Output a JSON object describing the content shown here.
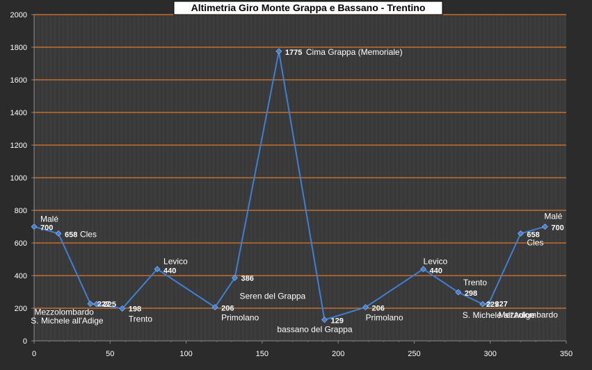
{
  "chart_data": {
    "type": "scatter",
    "title": "Altimetria Giro Monte Grappa e Bassano - Trentino",
    "xlim": [
      0,
      350
    ],
    "ylim": [
      0,
      2000
    ],
    "x_ticks": [
      0,
      50,
      100,
      150,
      200,
      250,
      300,
      350
    ],
    "y_ticks": [
      0,
      200,
      400,
      600,
      800,
      1000,
      1200,
      1400,
      1600,
      1800,
      2000
    ],
    "grid": true,
    "legend": "none",
    "colors": {
      "frame_background": "#2b2b2b",
      "plot_background": "#3c3c3c",
      "gridline": "#e07a2a",
      "series": "#3f7fd6",
      "text": "#ffffff",
      "title_box": "#ffffff",
      "title_text": "#000000"
    },
    "series": [
      {
        "points": [
          {
            "x": 0,
            "y": 700,
            "value_label": "700",
            "place": "Malé"
          },
          {
            "x": 16,
            "y": 658,
            "value_label": "658",
            "place": "Cles"
          },
          {
            "x": 37,
            "y": 227,
            "value_label": "227",
            "place": "Mezzolombardo"
          },
          {
            "x": 41,
            "y": 225,
            "value_label": "225",
            "place": "S. Michele all'Adige"
          },
          {
            "x": 58,
            "y": 198,
            "value_label": "198",
            "place": "Trento"
          },
          {
            "x": 81,
            "y": 440,
            "value_label": "440",
            "place": "Levico"
          },
          {
            "x": 119,
            "y": 206,
            "value_label": "206",
            "place": "Primolano"
          },
          {
            "x": 132,
            "y": 386,
            "value_label": "386",
            "place": "Seren del Grappa"
          },
          {
            "x": 161,
            "y": 1775,
            "value_label": "1775",
            "place": "Cima Grappa (Memoriale)"
          },
          {
            "x": 191,
            "y": 129,
            "value_label": "129",
            "place": "bassano del Grappa"
          },
          {
            "x": 218,
            "y": 206,
            "value_label": "206",
            "place": "Primolano"
          },
          {
            "x": 256,
            "y": 440,
            "value_label": "440",
            "place": "Levico"
          },
          {
            "x": 279,
            "y": 298,
            "value_label": "298",
            "place": "Trento"
          },
          {
            "x": 295,
            "y": 225,
            "value_label": "225",
            "place": "S. Michele all'Adige"
          },
          {
            "x": 299,
            "y": 227,
            "value_label": "227",
            "place": "Mezzolombardo"
          },
          {
            "x": 320,
            "y": 658,
            "value_label": "658",
            "place": "Cles"
          },
          {
            "x": 336,
            "y": 700,
            "value_label": "700",
            "place": "Malé"
          }
        ]
      }
    ]
  }
}
